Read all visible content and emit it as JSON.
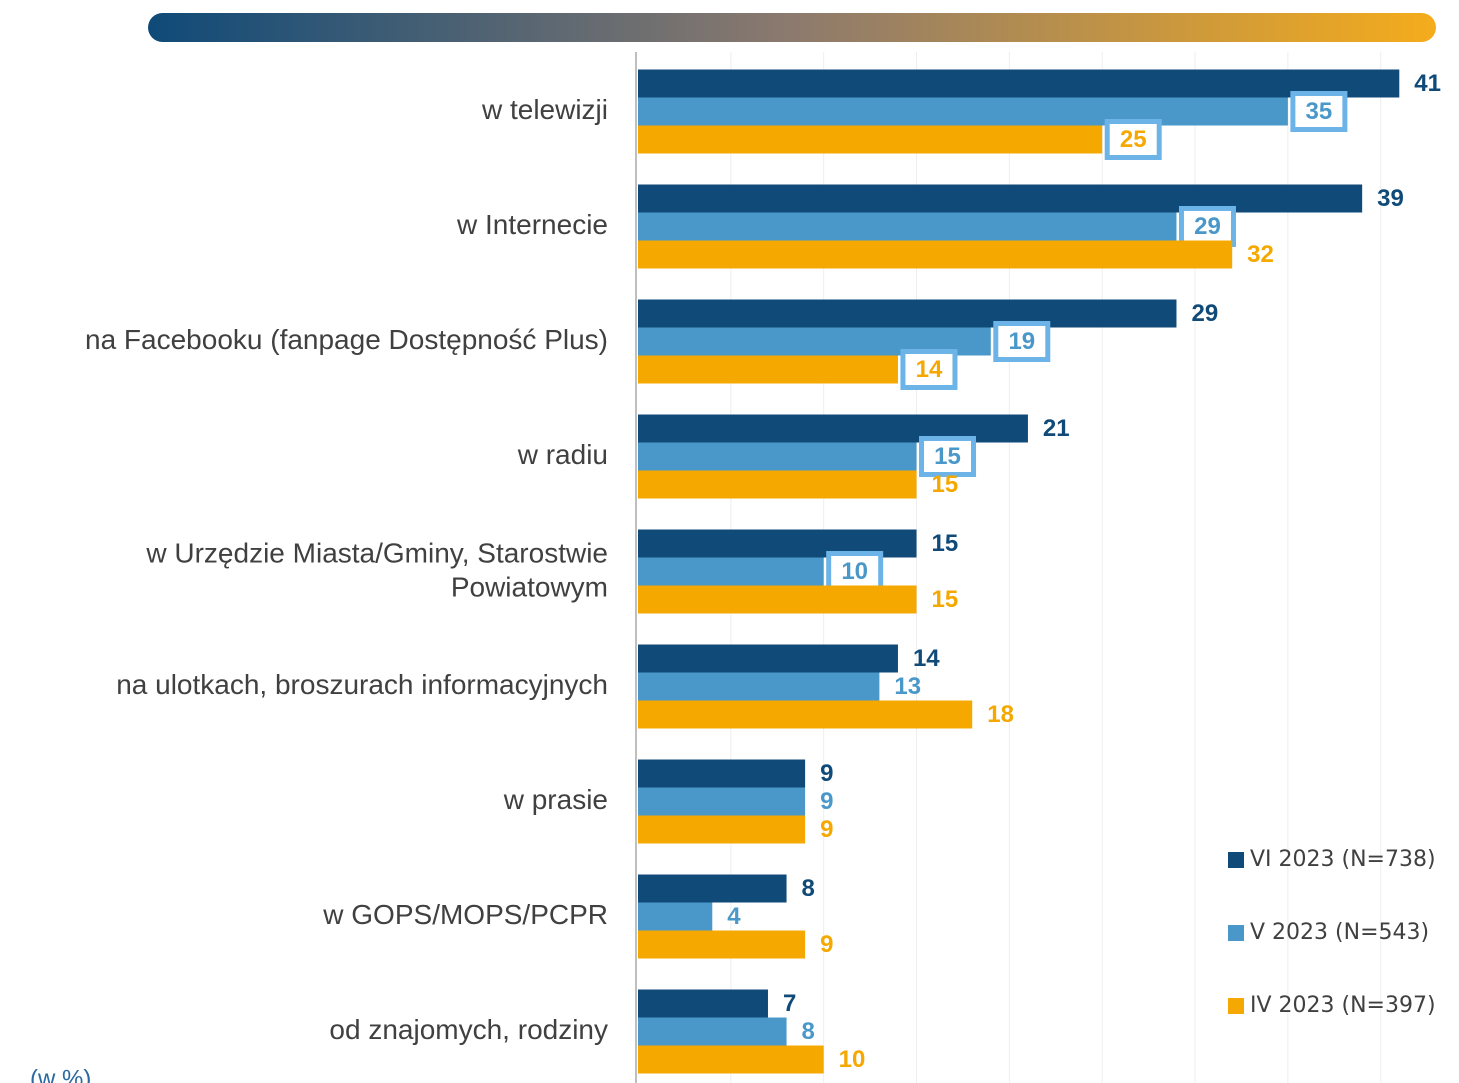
{
  "chart_data": {
    "type": "hbar",
    "categories": [
      "w telewizji",
      "w Internecie",
      "na Facebooku (fanpage Dostępność Plus)",
      "w radiu",
      "w Urzędzie Miasta/Gminy, Starostwie\nPowiatowym",
      "na ulotkach, broszurach informacyjnych",
      "w prasie",
      "w GOPS/MOPS/PCPR",
      "od znajomych, rodziny"
    ],
    "series": [
      {
        "name": "VI 2023 (N=738)",
        "color": "#0f4a78",
        "values": [
          41,
          39,
          29,
          21,
          15,
          14,
          9,
          8,
          7
        ],
        "highlight": [
          false,
          false,
          false,
          false,
          false,
          false,
          false,
          false,
          false
        ]
      },
      {
        "name": "V 2023 (N=543)",
        "color": "#4a98c9",
        "values": [
          35,
          29,
          19,
          15,
          10,
          13,
          9,
          4,
          8
        ],
        "highlight": [
          true,
          true,
          true,
          true,
          true,
          false,
          false,
          false,
          false
        ]
      },
      {
        "name": "IV 2023 (N=397)",
        "color": "#f5a800",
        "values": [
          25,
          32,
          14,
          15,
          15,
          18,
          9,
          9,
          10
        ],
        "highlight": [
          true,
          false,
          true,
          false,
          false,
          false,
          false,
          false,
          false
        ]
      }
    ],
    "xlim": [
      0,
      44
    ],
    "xticks": [
      0,
      5,
      10,
      15,
      20,
      25,
      30,
      35,
      40
    ],
    "grid": true,
    "highlight_color": "#6cb4e8",
    "unit_note": "(w %)"
  }
}
